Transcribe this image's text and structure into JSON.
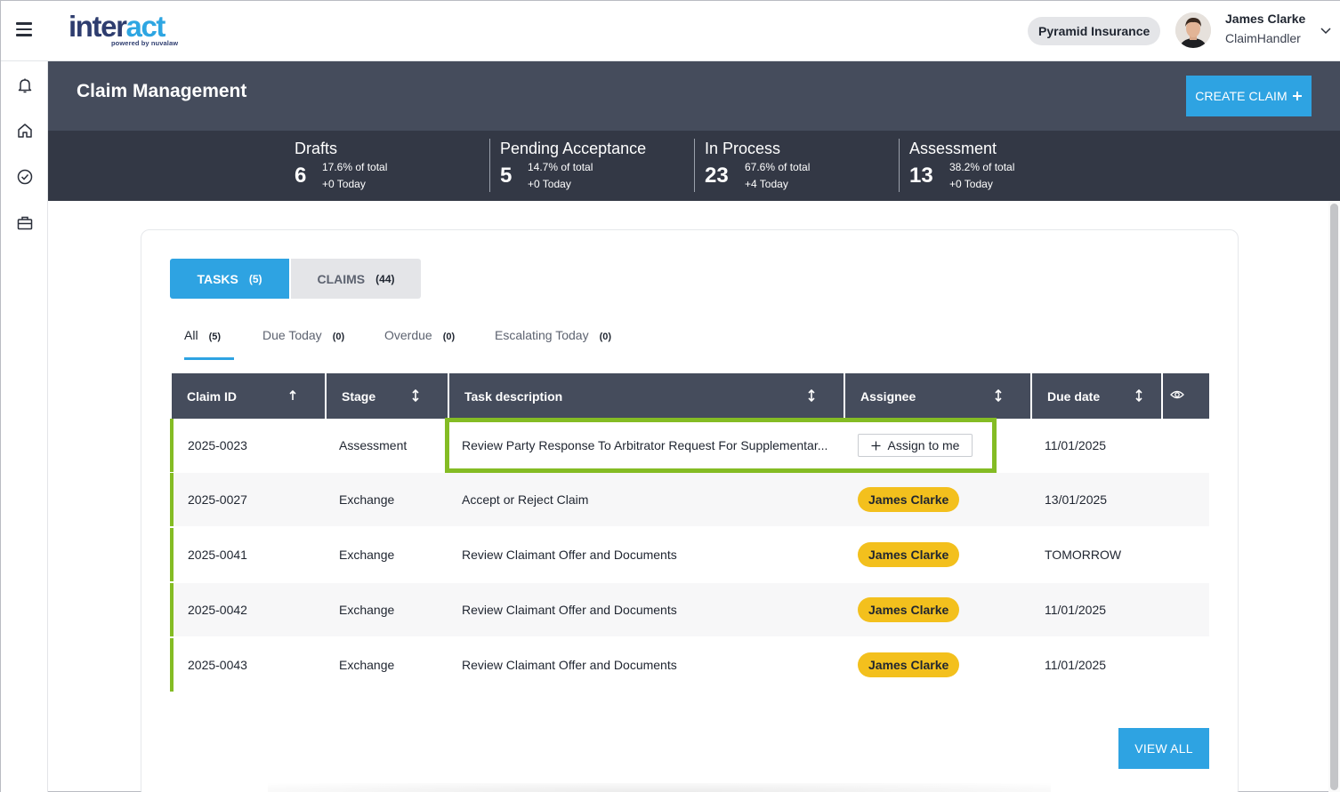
{
  "app": {
    "logo_main": "inter",
    "logo_accent": "act",
    "logo_sub": "powered by nuvalaw",
    "organization": "Pyramid Insurance",
    "user_name": "James Clarke",
    "user_role": "ClaimHandler"
  },
  "sidebar": {
    "items": [
      {
        "icon": "bell-icon"
      },
      {
        "icon": "home-icon"
      },
      {
        "icon": "check-circle-icon"
      },
      {
        "icon": "briefcase-icon"
      }
    ]
  },
  "header": {
    "title": "Claim Management",
    "create_label": "CREATE CLAIM"
  },
  "stats": [
    {
      "label": "Drafts",
      "count": "6",
      "pct": "17.6% of total",
      "today": "+0 Today"
    },
    {
      "label": "Pending Acceptance",
      "count": "5",
      "pct": "14.7% of total",
      "today": "+0 Today"
    },
    {
      "label": "In Process",
      "count": "23",
      "pct": "67.6% of total",
      "today": "+4 Today"
    },
    {
      "label": "Assessment",
      "count": "13",
      "pct": "38.2% of total",
      "today": "+0 Today"
    }
  ],
  "tabs": [
    {
      "label": "TASKS",
      "count": "(5)"
    },
    {
      "label": "CLAIMS",
      "count": "(44)"
    }
  ],
  "subtabs": [
    {
      "label": "All",
      "count": "(5)"
    },
    {
      "label": "Due Today",
      "count": "(0)"
    },
    {
      "label": "Overdue",
      "count": "(0)"
    },
    {
      "label": "Escalating Today",
      "count": "(0)"
    }
  ],
  "table": {
    "columns": [
      "Claim ID",
      "Stage",
      "Task description",
      "Assignee",
      "Due date"
    ],
    "assign_label": "Assign to me",
    "rows": [
      {
        "claim_id": "2025-0023",
        "stage": "Assessment",
        "task": "Review Party Response To Arbitrator Request For Supplementar...",
        "assignee": "",
        "due": "11/01/2025"
      },
      {
        "claim_id": "2025-0027",
        "stage": "Exchange",
        "task": "Accept or Reject Claim",
        "assignee": "James Clarke",
        "due": "13/01/2025"
      },
      {
        "claim_id": "2025-0041",
        "stage": "Exchange",
        "task": "Review Claimant Offer and Documents",
        "assignee": "James Clarke",
        "due": "TOMORROW"
      },
      {
        "claim_id": "2025-0042",
        "stage": "Exchange",
        "task": "Review Claimant Offer and Documents",
        "assignee": "James Clarke",
        "due": "11/01/2025"
      },
      {
        "claim_id": "2025-0043",
        "stage": "Exchange",
        "task": "Review Claimant Offer and Documents",
        "assignee": "James Clarke",
        "due": "11/01/2025"
      }
    ]
  },
  "view_all_label": "VIEW ALL",
  "colors": {
    "accent": "#2ea3e2",
    "header_bg": "#454c5c",
    "stats_bg": "#333845",
    "row_marker": "#84bc24",
    "assignee_pill": "#f3c01d"
  }
}
